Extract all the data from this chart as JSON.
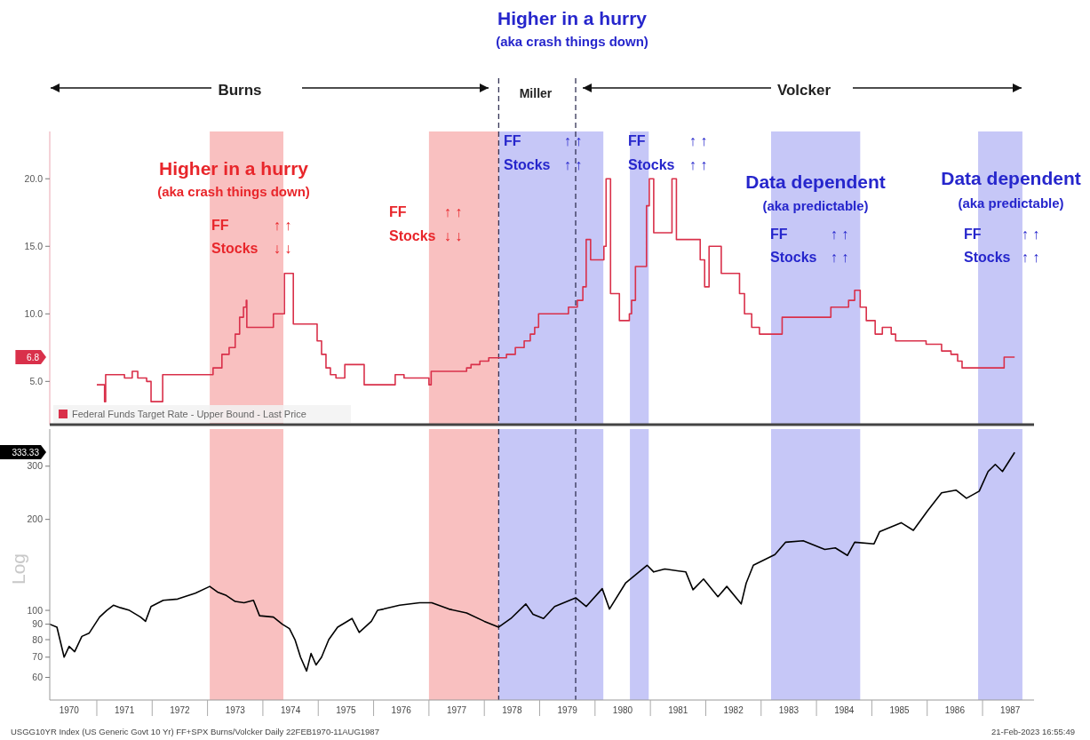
{
  "chart_data": [
    {
      "type": "step",
      "xlim": [
        1970.15,
        1987.93
      ],
      "ylim": [
        1.8,
        23.5
      ],
      "tick_labels": "y",
      "legend": "bottom left",
      "yticks": [
        {
          "value": 5,
          "label": "5.0"
        },
        {
          "value": 10,
          "label": "10.0"
        },
        {
          "value": 15,
          "label": "15.0"
        },
        {
          "value": 20,
          "label": "20.0"
        }
      ],
      "series": [
        {
          "name": "Federal Funds Target Rate - Upper Bound - Last Price",
          "color": "#d9304a",
          "x": [
            1971.0,
            1971.14,
            1971.16,
            1971.5,
            1971.64,
            1971.74,
            1971.9,
            1971.98,
            1972.19,
            1973.1,
            1973.26,
            1973.39,
            1973.5,
            1973.58,
            1973.65,
            1973.7,
            1973.71,
            1974.19,
            1974.39,
            1974.55,
            1974.98,
            1975.06,
            1975.14,
            1975.22,
            1975.32,
            1975.48,
            1975.83,
            1976.39,
            1976.55,
            1977.0,
            1977.04,
            1977.68,
            1977.76,
            1977.92,
            1978.08,
            1978.4,
            1978.56,
            1978.72,
            1978.83,
            1978.91,
            1978.98,
            1979.52,
            1979.68,
            1979.78,
            1979.84,
            1979.92,
            1980.16,
            1980.2,
            1980.28,
            1980.44,
            1980.62,
            1980.66,
            1980.73,
            1980.93,
            1980.98,
            1981.06,
            1981.39,
            1981.47,
            1981.9,
            1981.98,
            1982.06,
            1982.28,
            1982.61,
            1982.7,
            1982.83,
            1982.97,
            1983.38,
            1984.26,
            1984.58,
            1984.69,
            1984.79,
            1984.9,
            1985.06,
            1985.19,
            1985.35,
            1985.43,
            1985.98,
            1986.26,
            1986.43,
            1986.55,
            1986.63,
            1987.39,
            1987.58
          ],
          "values": [
            4.75,
            3.5,
            5.5,
            5.25,
            5.75,
            5.25,
            5.0,
            3.5,
            5.5,
            6.0,
            7.0,
            7.5,
            8.5,
            9.75,
            10.5,
            11.0,
            9.0,
            10.0,
            13.0,
            9.25,
            8.0,
            7.0,
            6.0,
            5.5,
            5.25,
            6.25,
            4.75,
            5.5,
            5.25,
            4.75,
            5.75,
            6.0,
            6.25,
            6.5,
            6.75,
            7.0,
            7.5,
            8.0,
            8.5,
            9.0,
            10.0,
            10.5,
            11.0,
            12.0,
            15.5,
            14.0,
            15.0,
            20.0,
            11.5,
            9.5,
            10.0,
            11.0,
            13.5,
            18.0,
            20.0,
            16.0,
            20.0,
            15.5,
            14.0,
            12.0,
            15.0,
            13.0,
            11.5,
            10.0,
            9.0,
            8.5,
            9.75,
            10.5,
            11.0,
            11.75,
            10.5,
            9.5,
            8.5,
            9.0,
            8.5,
            8.0,
            7.75,
            7.25,
            7.0,
            6.5,
            6.0,
            6.8,
            6.8
          ]
        }
      ],
      "bands": [
        {
          "axis": "x",
          "from": 1973.04,
          "to": 1974.37,
          "color": "#f9c0c0"
        },
        {
          "axis": "x",
          "from": 1977.0,
          "to": 1978.26,
          "color": "#f9c0c0"
        },
        {
          "axis": "x",
          "from": 1978.26,
          "to": 1980.15,
          "color": "#c6c7f7"
        },
        {
          "axis": "x",
          "from": 1980.63,
          "to": 1980.97,
          "color": "#c6c7f7"
        },
        {
          "axis": "x",
          "from": 1983.18,
          "to": 1984.79,
          "color": "#c6c7f7"
        },
        {
          "axis": "x",
          "from": 1986.92,
          "to": 1987.72,
          "color": "#c6c7f7"
        }
      ],
      "ref_lines": [
        {
          "axis": "x",
          "value": 1978.26,
          "color": "#333355",
          "line_style": "dashed"
        },
        {
          "axis": "x",
          "value": 1979.65,
          "color": "#333355",
          "line_style": "dashed"
        }
      ],
      "annotations": [
        "Higher in a hurry",
        "(aka crash things down)",
        "Burns",
        "Miller",
        "Volcker",
        "Higher in a hurry",
        "(aka crash things down)",
        "FF",
        "↑ ↑",
        "Stocks",
        "↓ ↓",
        "FF",
        "↑ ↑",
        "Stocks",
        "↓ ↓",
        "FF",
        "↑ ↑",
        "Stocks",
        "↑ ↑",
        "FF",
        "↑ ↑",
        "Stocks",
        "↑ ↑",
        "Data dependent",
        "(aka predictable)",
        "FF",
        "↑ ↑",
        "Stocks",
        "↑ ↑",
        "Data dependent",
        "(aka predictable)",
        "FF",
        "↑ ↑",
        "Stocks",
        "↑ ↑",
        "6.8"
      ]
    },
    {
      "type": "line",
      "log": true,
      "ylabel": "Log",
      "xlim": [
        1970.15,
        1987.93
      ],
      "ylim": [
        50.5,
        398
      ],
      "xticks": [
        {
          "value": 1970.5,
          "label": "1970"
        },
        {
          "value": 1971.5,
          "label": "1971"
        },
        {
          "value": 1972.5,
          "label": "1972"
        },
        {
          "value": 1973.5,
          "label": "1973"
        },
        {
          "value": 1974.5,
          "label": "1974"
        },
        {
          "value": 1975.5,
          "label": "1975"
        },
        {
          "value": 1976.5,
          "label": "1976"
        },
        {
          "value": 1977.5,
          "label": "1977"
        },
        {
          "value": 1978.5,
          "label": "1978"
        },
        {
          "value": 1979.5,
          "label": "1979"
        },
        {
          "value": 1980.5,
          "label": "1980"
        },
        {
          "value": 1981.5,
          "label": "1981"
        },
        {
          "value": 1982.5,
          "label": "1982"
        },
        {
          "value": 1983.5,
          "label": "1983"
        },
        {
          "value": 1984.5,
          "label": "1984"
        },
        {
          "value": 1985.5,
          "label": "1985"
        },
        {
          "value": 1986.5,
          "label": "1986"
        },
        {
          "value": 1987.5,
          "label": "1987"
        }
      ],
      "yticks": [
        60,
        70,
        80,
        90,
        100,
        200,
        300
      ],
      "series": [
        {
          "color": "#000000",
          "x": [
            1970.15,
            1970.28,
            1970.41,
            1970.5,
            1970.6,
            1970.73,
            1970.86,
            1971.05,
            1971.18,
            1971.3,
            1971.43,
            1971.59,
            1971.79,
            1971.88,
            1971.98,
            1972.2,
            1972.46,
            1972.78,
            1973.04,
            1973.18,
            1973.34,
            1973.5,
            1973.66,
            1973.83,
            1973.94,
            1974.19,
            1974.35,
            1974.48,
            1974.58,
            1974.68,
            1974.79,
            1974.87,
            1974.96,
            1975.06,
            1975.19,
            1975.35,
            1975.61,
            1975.74,
            1975.96,
            1976.07,
            1976.18,
            1976.47,
            1976.83,
            1977.05,
            1977.36,
            1977.68,
            1978.0,
            1978.26,
            1978.48,
            1978.75,
            1978.88,
            1979.07,
            1979.27,
            1979.65,
            1979.84,
            1980.13,
            1980.26,
            1980.55,
            1980.94,
            1981.06,
            1981.26,
            1981.64,
            1981.77,
            1981.96,
            1982.22,
            1982.38,
            1982.64,
            1982.73,
            1982.86,
            1983.25,
            1983.44,
            1983.76,
            1984.15,
            1984.34,
            1984.56,
            1984.69,
            1985.04,
            1985.14,
            1985.53,
            1985.75,
            1986.01,
            1986.26,
            1986.52,
            1986.71,
            1986.94,
            1987.1,
            1987.23,
            1987.36,
            1987.58
          ],
          "values": [
            90,
            88,
            70,
            76,
            73,
            82,
            84,
            95,
            100,
            104,
            102,
            100,
            95,
            92,
            103,
            108,
            109,
            114,
            120,
            115,
            112,
            107,
            106,
            108,
            96,
            95,
            90,
            87,
            80,
            70,
            63,
            72,
            66,
            70,
            80,
            88,
            94,
            84.5,
            92,
            100,
            101,
            104,
            106,
            106,
            101,
            98,
            92,
            88,
            94,
            105,
            97,
            94,
            103,
            110,
            103,
            118,
            101,
            123,
            141,
            134,
            137,
            134,
            117,
            127,
            111,
            120,
            105,
            123,
            141,
            153,
            168,
            170,
            159,
            161,
            152,
            168,
            166,
            182,
            195,
            184,
            214,
            245,
            250,
            235,
            248,
            288,
            304,
            288,
            333.33
          ]
        }
      ],
      "bands": [
        {
          "axis": "x",
          "from": 1973.04,
          "to": 1974.37,
          "color": "#f9c0c0"
        },
        {
          "axis": "x",
          "from": 1977.0,
          "to": 1978.26,
          "color": "#f9c0c0"
        },
        {
          "axis": "x",
          "from": 1978.26,
          "to": 1980.15,
          "color": "#c6c7f7"
        },
        {
          "axis": "x",
          "from": 1980.63,
          "to": 1980.97,
          "color": "#c6c7f7"
        },
        {
          "axis": "x",
          "from": 1983.18,
          "to": 1984.79,
          "color": "#c6c7f7"
        },
        {
          "axis": "x",
          "from": 1986.92,
          "to": 1987.72,
          "color": "#c6c7f7"
        }
      ],
      "ref_lines": [
        {
          "axis": "x",
          "value": 1978.26,
          "color": "#333355",
          "line_style": "dashed"
        },
        {
          "axis": "x",
          "value": 1979.65,
          "color": "#333355",
          "line_style": "dashed"
        }
      ],
      "annotations": [
        "333.33",
        "USGG10YR Index (US Generic Govt 10 Yr) FF+SPX Burns/Volcker  Daily 22FEB1970-11AUG1987",
        "21-Feb-2023 16:55:49"
      ]
    }
  ]
}
